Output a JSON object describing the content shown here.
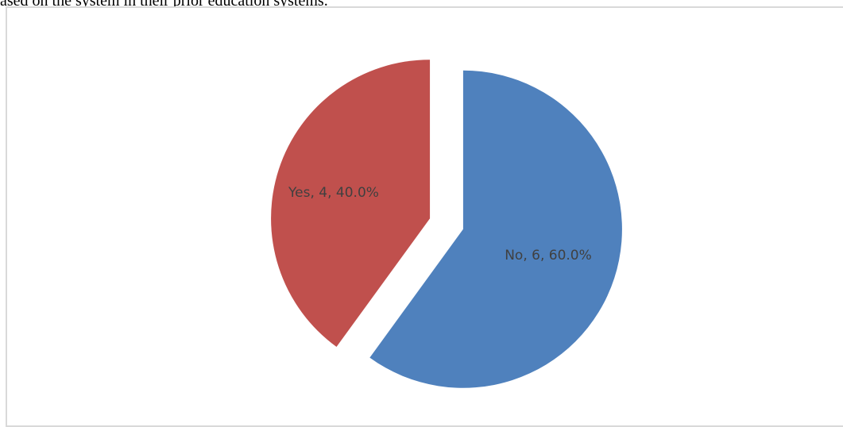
{
  "caption": "ased on the system in their prior education systems.",
  "chart_data": {
    "type": "pie",
    "categories": [
      "No",
      "Yes"
    ],
    "values": [
      6,
      4
    ],
    "percentages": [
      "60.0%",
      "40.0%"
    ],
    "labels": [
      "No, 6, 60.0%",
      "Yes, 4, 40.0%"
    ],
    "colors": [
      "#4f81bd",
      "#c0504d"
    ],
    "exploded": true,
    "title": "",
    "legend": "none"
  }
}
